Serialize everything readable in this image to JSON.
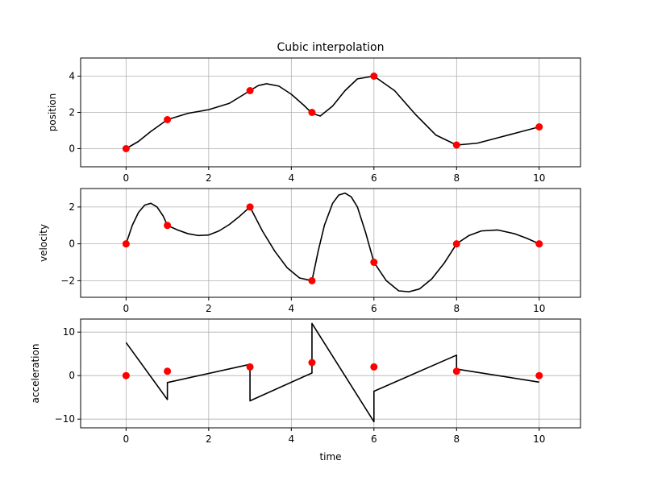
{
  "figure": {
    "title": "Cubic interpolation"
  },
  "colors": {
    "curve": "#000000",
    "marker": "#ff0000",
    "grid": "#b0b0b0",
    "frame": "#000000"
  },
  "chart_data": [
    {
      "type": "line",
      "title": "Cubic interpolation",
      "xlabel": "",
      "ylabel": "position",
      "xlim": [
        -1.1,
        11
      ],
      "ylim": [
        -1,
        5
      ],
      "xticks": [
        0,
        2,
        4,
        6,
        8,
        10
      ],
      "yticks": [
        0,
        2,
        4
      ],
      "grid": true,
      "series": [
        {
          "kind": "markers",
          "x": [
            0,
            1,
            3,
            4.5,
            6,
            8,
            10
          ],
          "y": [
            0,
            1.6,
            3.2,
            2.0,
            4.0,
            0.2,
            1.2
          ]
        },
        {
          "kind": "curve",
          "x": [
            0,
            0.3,
            0.6,
            1,
            1.5,
            2,
            2.5,
            3,
            3.2,
            3.4,
            3.7,
            4,
            4.3,
            4.5,
            4.7,
            5,
            5.3,
            5.6,
            6,
            6.5,
            7,
            7.5,
            8,
            8.5,
            9,
            9.5,
            10
          ],
          "y": [
            0,
            0.4,
            0.95,
            1.6,
            1.95,
            2.15,
            2.5,
            3.2,
            3.48,
            3.58,
            3.45,
            3.0,
            2.4,
            1.95,
            1.8,
            2.35,
            3.2,
            3.85,
            4.0,
            3.2,
            1.9,
            0.75,
            0.2,
            0.3,
            0.6,
            0.9,
            1.2
          ]
        }
      ]
    },
    {
      "type": "line",
      "title": "",
      "xlabel": "",
      "ylabel": "velocity",
      "xlim": [
        -1.1,
        11
      ],
      "ylim": [
        -2.9,
        3.0
      ],
      "xticks": [
        0,
        2,
        4,
        6,
        8,
        10
      ],
      "yticks": [
        -2,
        0,
        2
      ],
      "grid": true,
      "series": [
        {
          "kind": "markers",
          "x": [
            0,
            1,
            3,
            4.5,
            6,
            8,
            10
          ],
          "y": [
            0,
            1.0,
            2.0,
            -2.0,
            -1.0,
            0,
            0
          ]
        },
        {
          "kind": "curve",
          "x": [
            0,
            0.15,
            0.3,
            0.45,
            0.6,
            0.75,
            0.9,
            1,
            1.25,
            1.5,
            1.75,
            2,
            2.25,
            2.5,
            2.75,
            3,
            3.3,
            3.6,
            3.9,
            4.2,
            4.5,
            4.65,
            4.8,
            5.0,
            5.15,
            5.3,
            5.45,
            5.6,
            5.8,
            6,
            6.3,
            6.6,
            6.85,
            7.1,
            7.4,
            7.7,
            8,
            8.3,
            8.6,
            9,
            9.4,
            9.7,
            10
          ],
          "y": [
            0,
            1.0,
            1.7,
            2.1,
            2.2,
            2.0,
            1.5,
            1.0,
            0.75,
            0.55,
            0.45,
            0.48,
            0.7,
            1.05,
            1.5,
            2.0,
            0.7,
            -0.4,
            -1.3,
            -1.85,
            -2.0,
            -0.4,
            1.0,
            2.2,
            2.65,
            2.75,
            2.55,
            2.0,
            0.6,
            -1.0,
            -2.0,
            -2.55,
            -2.6,
            -2.45,
            -1.9,
            -1.05,
            0,
            0.45,
            0.7,
            0.75,
            0.55,
            0.3,
            0
          ]
        }
      ]
    },
    {
      "type": "line",
      "title": "",
      "xlabel": "time",
      "ylabel": "acceleration",
      "xlim": [
        -1.1,
        11
      ],
      "ylim": [
        -12,
        13
      ],
      "xticks": [
        0,
        2,
        4,
        6,
        8,
        10
      ],
      "yticks": [
        -10,
        0,
        10
      ],
      "grid": true,
      "series": [
        {
          "kind": "markers",
          "x": [
            0,
            1,
            3,
            4.5,
            6,
            8,
            10
          ],
          "y": [
            0,
            1.0,
            2.0,
            3.0,
            2.0,
            1.0,
            0
          ]
        },
        {
          "kind": "curve",
          "x": [
            0,
            1,
            1,
            3,
            3,
            4.5,
            4.5,
            6,
            6,
            8,
            8,
            10
          ],
          "y": [
            7.6,
            -5.5,
            -1.6,
            2.6,
            -5.8,
            0.6,
            12.0,
            -10.6,
            -3.6,
            4.7,
            1.5,
            -1.5
          ]
        }
      ]
    }
  ]
}
